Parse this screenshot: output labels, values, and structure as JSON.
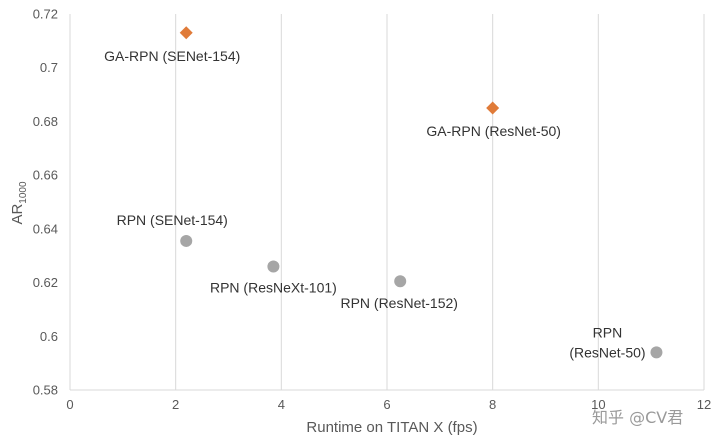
{
  "chart_data": {
    "type": "scatter",
    "title": "",
    "xlabel": "Runtime on TITAN X (fps)",
    "ylabel": {
      "base": "AR",
      "sub": "1000"
    },
    "xlim": [
      0,
      12
    ],
    "ylim": [
      0.58,
      0.72
    ],
    "xticks": [
      0,
      2,
      4,
      6,
      8,
      10,
      12
    ],
    "yticks": [
      0.58,
      0.6,
      0.62,
      0.64,
      0.66,
      0.68,
      0.7,
      0.72
    ],
    "ytick_labels": [
      "0.58",
      "0.6",
      "0.62",
      "0.64",
      "0.66",
      "0.68",
      "0.7",
      "0.72"
    ],
    "grid": {
      "vertical": true,
      "horizontal": false
    },
    "legend": "none",
    "series": [
      {
        "marker": "diamond",
        "color": "#e07b39",
        "points": [
          {
            "x": 2.2,
            "y": 0.713,
            "label": [
              "GA-RPN (SENet-154)"
            ]
          },
          {
            "x": 8.0,
            "y": 0.685,
            "label": [
              "GA-RPN (ResNet-50)"
            ]
          }
        ]
      },
      {
        "marker": "circle",
        "color": "#a6a6a6",
        "points": [
          {
            "x": 2.2,
            "y": 0.6355,
            "label": [
              "RPN (SENet-154)"
            ]
          },
          {
            "x": 3.85,
            "y": 0.626,
            "label": [
              "RPN (ResNeXt-101)"
            ]
          },
          {
            "x": 6.25,
            "y": 0.6205,
            "label": [
              "RPN (ResNet-152)"
            ]
          },
          {
            "x": 11.1,
            "y": 0.594,
            "label": [
              "RPN",
              "(ResNet-50)"
            ]
          }
        ]
      }
    ]
  },
  "watermark": "知乎 @CV君"
}
